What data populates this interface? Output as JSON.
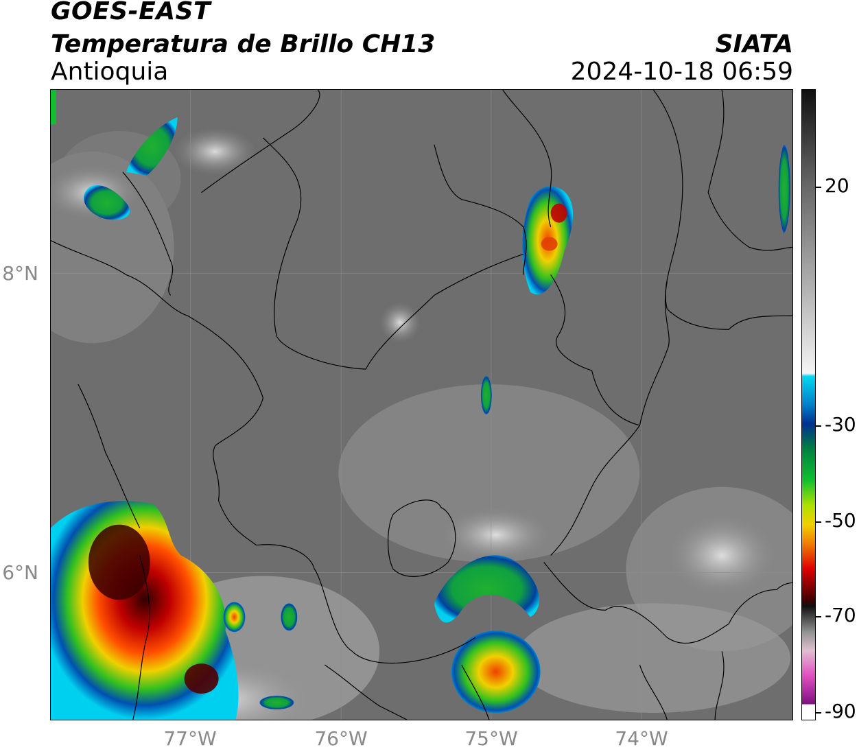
{
  "header": {
    "satellite": "GOES-EAST",
    "product": "Temperatura de Brillo CH13",
    "region": "Antioquia",
    "brand": "SIATA",
    "timestamp": "2024-10-18 06:59"
  },
  "map": {
    "lat_labels": [
      "8°N",
      "6°N"
    ],
    "lon_labels": [
      "77°W",
      "76°W",
      "75°W",
      "74°W"
    ],
    "background_color": "#6e6e6e"
  },
  "colorbar": {
    "tick_labels": [
      "20",
      "-30",
      "-50",
      "-70",
      "-90"
    ],
    "colors": {
      "warm_gray_top": "#111111",
      "mid_gray": "#9a9a9a",
      "white": "#ffffff",
      "cyan": "#00d8f0",
      "blue": "#0030a0",
      "green": "#10c030",
      "yellow": "#f0f000",
      "orange": "#f08000",
      "red": "#e00000",
      "dark_red": "#400000",
      "magenta": "#e040c0",
      "purple": "#801080"
    }
  }
}
